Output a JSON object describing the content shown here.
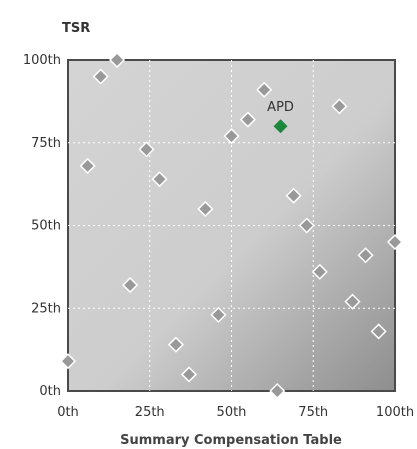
{
  "chart_data": {
    "type": "scatter",
    "ylabel": "TSR",
    "xlabel": "Summary Compensation Table",
    "x_ticks": [
      "0th",
      "25th",
      "50th",
      "75th",
      "100th"
    ],
    "y_ticks": [
      "0th",
      "25th",
      "50th",
      "75th",
      "100th"
    ],
    "xlim": [
      0,
      100
    ],
    "ylim": [
      0,
      100
    ],
    "grid": true,
    "points": [
      {
        "x": 10,
        "y": 95
      },
      {
        "x": 15,
        "y": 100
      },
      {
        "x": 6,
        "y": 68
      },
      {
        "x": 24,
        "y": 73
      },
      {
        "x": 28,
        "y": 64
      },
      {
        "x": 19,
        "y": 32
      },
      {
        "x": 42,
        "y": 55
      },
      {
        "x": 50,
        "y": 77
      },
      {
        "x": 55,
        "y": 82
      },
      {
        "x": 60,
        "y": 91
      },
      {
        "x": 83,
        "y": 86
      },
      {
        "x": 69,
        "y": 59
      },
      {
        "x": 73,
        "y": 50
      },
      {
        "x": 77,
        "y": 36
      },
      {
        "x": 87,
        "y": 27
      },
      {
        "x": 91,
        "y": 41
      },
      {
        "x": 100,
        "y": 45
      },
      {
        "x": 95,
        "y": 18
      },
      {
        "x": 46,
        "y": 23
      },
      {
        "x": 33,
        "y": 14
      },
      {
        "x": 37,
        "y": 5
      },
      {
        "x": 64,
        "y": 0
      },
      {
        "x": 0,
        "y": 9
      }
    ],
    "highlight": {
      "label": "APD",
      "x": 65,
      "y": 80
    },
    "point_color": "#999999",
    "highlight_color": "#1a8a3a"
  }
}
